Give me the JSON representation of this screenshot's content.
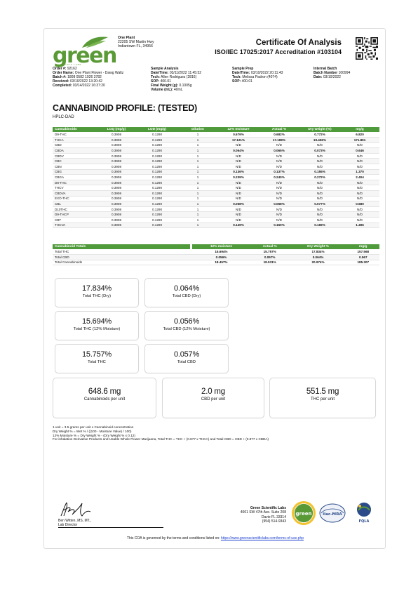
{
  "header": {
    "logo_text": "green",
    "logo_sub": "SCIENTIFIC LABS",
    "client_name": "One Plant",
    "client_address_1": "22205 SW Martin Hwy",
    "client_address_2": "Indiantown FL, 34956",
    "title": "Certificate Of Analysis",
    "accreditation": "ISO/IEC 17025:2017 Accreditation #103104"
  },
  "order": {
    "order_no_label": "Order #:",
    "order_no": "92162",
    "order_name_label": "Order Name:",
    "order_name": "One Plant Flower - Dawg Waltz",
    "batch_label": "Batch #:",
    "batch": "1808 0582 1926 3782",
    "received_label": "Received:",
    "received": "03/10/2022 13:20:42",
    "completed_label": "Completed:",
    "completed": "03/14/2022 16:37:20"
  },
  "sample_analysis": {
    "heading": "Sample Analysis",
    "datetime_label": "Date/Time:",
    "datetime": "03/11/2022 11:45:52",
    "tech_label": "Tech:",
    "tech": "Allen Rodriguez (2816)",
    "sop_label": "SOP:",
    "sop": "400.01",
    "weight_label": "Final Weight (g):",
    "weight": "0.1005g",
    "volume_label": "Volume (mL):",
    "volume": "40mL"
  },
  "sample_prep": {
    "heading": "Sample Prep",
    "datetime_label": "Date/Time:",
    "datetime": "03/10/2022 20:11:43",
    "tech_label": "Tech:",
    "tech": "Melissa Padron (4074)",
    "sop_label": "SOP:",
    "sop": "400.01"
  },
  "internal_batch": {
    "heading": "Internal Batch",
    "batch_label": "Batch Number",
    "batch": "100994",
    "date_label": "Date:",
    "date": "03/10/2022"
  },
  "profile": {
    "title": "CANNABINOID PROFILE: (TESTED)",
    "method": "HPLC-DAD",
    "columns": [
      "Cannabinoids",
      "LOQ (mg/g)",
      "LOD (mg/g)",
      "Dilution",
      "12% moisture",
      "Actual %",
      "Dry weight (%)",
      "mg/g"
    ],
    "rows": [
      [
        "D9-THC",
        "0.3908",
        "0.1290",
        "1",
        "0.679%",
        "0.682%",
        "0.772%",
        "6.820"
      ],
      [
        "THCA",
        "0.3908",
        "0.1290",
        "1",
        "17.121%",
        "17.189%",
        "19.456%",
        "171.891"
      ],
      [
        "CBD",
        "0.3908",
        "0.1290",
        "1",
        "N/D",
        "N/D",
        "N/D",
        "N/D"
      ],
      [
        "CBDA",
        "0.3908",
        "0.1290",
        "1",
        "0.064%",
        "0.065%",
        "0.073%",
        "0.646"
      ],
      [
        "CBDV",
        "0.3908",
        "0.1290",
        "1",
        "N/D",
        "N/D",
        "N/D",
        "N/D"
      ],
      [
        "CBC",
        "0.3908",
        "0.1290",
        "1",
        "N/D",
        "N/D",
        "N/D",
        "N/D"
      ],
      [
        "CBN",
        "0.3908",
        "0.1290",
        "1",
        "N/D",
        "N/D",
        "N/D",
        "N/D"
      ],
      [
        "CBG",
        "0.3908",
        "0.1290",
        "1",
        "0.136%",
        "0.137%",
        "0.155%",
        "1.370"
      ],
      [
        "CBGA",
        "0.3908",
        "0.1290",
        "1",
        "0.239%",
        "0.240%",
        "0.272%",
        "2.404"
      ],
      [
        "D8-THC",
        "0.3908",
        "0.1290",
        "1",
        "N/D",
        "N/D",
        "N/D",
        "N/D"
      ],
      [
        "THCV",
        "0.3908",
        "0.1290",
        "1",
        "N/D",
        "N/D",
        "N/D",
        "N/D"
      ],
      [
        "CBDVA",
        "0.3908",
        "0.1290",
        "1",
        "N/D",
        "N/D",
        "N/D",
        "N/D"
      ],
      [
        "EXO-THC",
        "0.3908",
        "0.1290",
        "1",
        "N/D",
        "N/D",
        "N/D",
        "N/D"
      ],
      [
        "CBL",
        "0.3908",
        "0.1290",
        "1",
        "0.068%",
        "0.068%",
        "0.077%",
        "0.680"
      ],
      [
        "D10THC",
        "0.3908",
        "0.1290",
        "1",
        "N/D",
        "N/D",
        "N/D",
        "N/D"
      ],
      [
        "D9-THCP",
        "0.3908",
        "0.1290",
        "1",
        "N/D",
        "N/D",
        "N/D",
        "N/D"
      ],
      [
        "CBT",
        "0.3908",
        "0.1290",
        "1",
        "N/D",
        "N/D",
        "N/D",
        "N/D"
      ],
      [
        "THCVA",
        "0.3908",
        "0.1290",
        "1",
        "0.149%",
        "0.150%",
        "0.169%",
        "1.496"
      ]
    ]
  },
  "totals": {
    "columns": [
      "Cannabinoid Totals",
      "12% moisture",
      "Actual %",
      "Dry Weight %",
      "mg/g"
    ],
    "rows": [
      [
        "Total THC",
        "15.694%",
        "15.757%",
        "17.834%",
        "157.568"
      ],
      [
        "Total CBD",
        "0.056%",
        "0.057%",
        "0.064%",
        "0.567"
      ],
      [
        "Total Cannabinoids",
        "18.457%",
        "18.531%",
        "20.974%",
        "185.307"
      ]
    ]
  },
  "summary": [
    {
      "value": "17.834%",
      "label": "Total THC (Dry)"
    },
    {
      "value": "0.064%",
      "label": "Total CBD (Dry)"
    },
    {
      "value": "15.694%",
      "label": "Total THC (12% Moisture)"
    },
    {
      "value": "0.056%",
      "label": "Total CBD (12% Moisture)"
    },
    {
      "value": "15.757%",
      "label": "Total THC"
    },
    {
      "value": "0.057%",
      "label": "Total CBD"
    }
  ],
  "per_unit": [
    {
      "value": "648.6 mg",
      "label": "Cannabinoids per unit"
    },
    {
      "value": "2.0 mg",
      "label": "CBD per unit"
    },
    {
      "value": "551.5 mg",
      "label": "THC per unit"
    }
  ],
  "notes": [
    "1 unit = 3.5 grams per unit x Cannabinoid concentration",
    "Dry Weight % = Wet % / ((100 - Moisture Value) / 100)",
    "12% Moisture % = Dry Weight % - (Dry Weight % x 0.12)",
    "For inhalation Derivative Products and Usable Whole Flower Marijuana, Total THC = THC + (0.877 x THCA) and Total CBD = CBD + (0.877 x CBDA)"
  ],
  "signer": {
    "name": "Ben Witten, MS, MT.,",
    "role": "Lab Director"
  },
  "lab": {
    "name": "Green Scientific Labs",
    "address_1": "4001 SW 47th Ave. Suite 208",
    "address_2": "Davie FL 33314",
    "phone": "(954) 514-9343"
  },
  "badges": {
    "green": "green",
    "ilac": "ilac-MRA",
    "fqla": "FQLA"
  },
  "footer": {
    "text": "This COA is governed by the terms and conditions listed on:",
    "link": "https://www.greenscientificlabs.com/terms-of-use.php"
  },
  "colors": {
    "accent": "#4f9a3b",
    "logo": "#5a9a36",
    "link": "#1a3fd0"
  }
}
